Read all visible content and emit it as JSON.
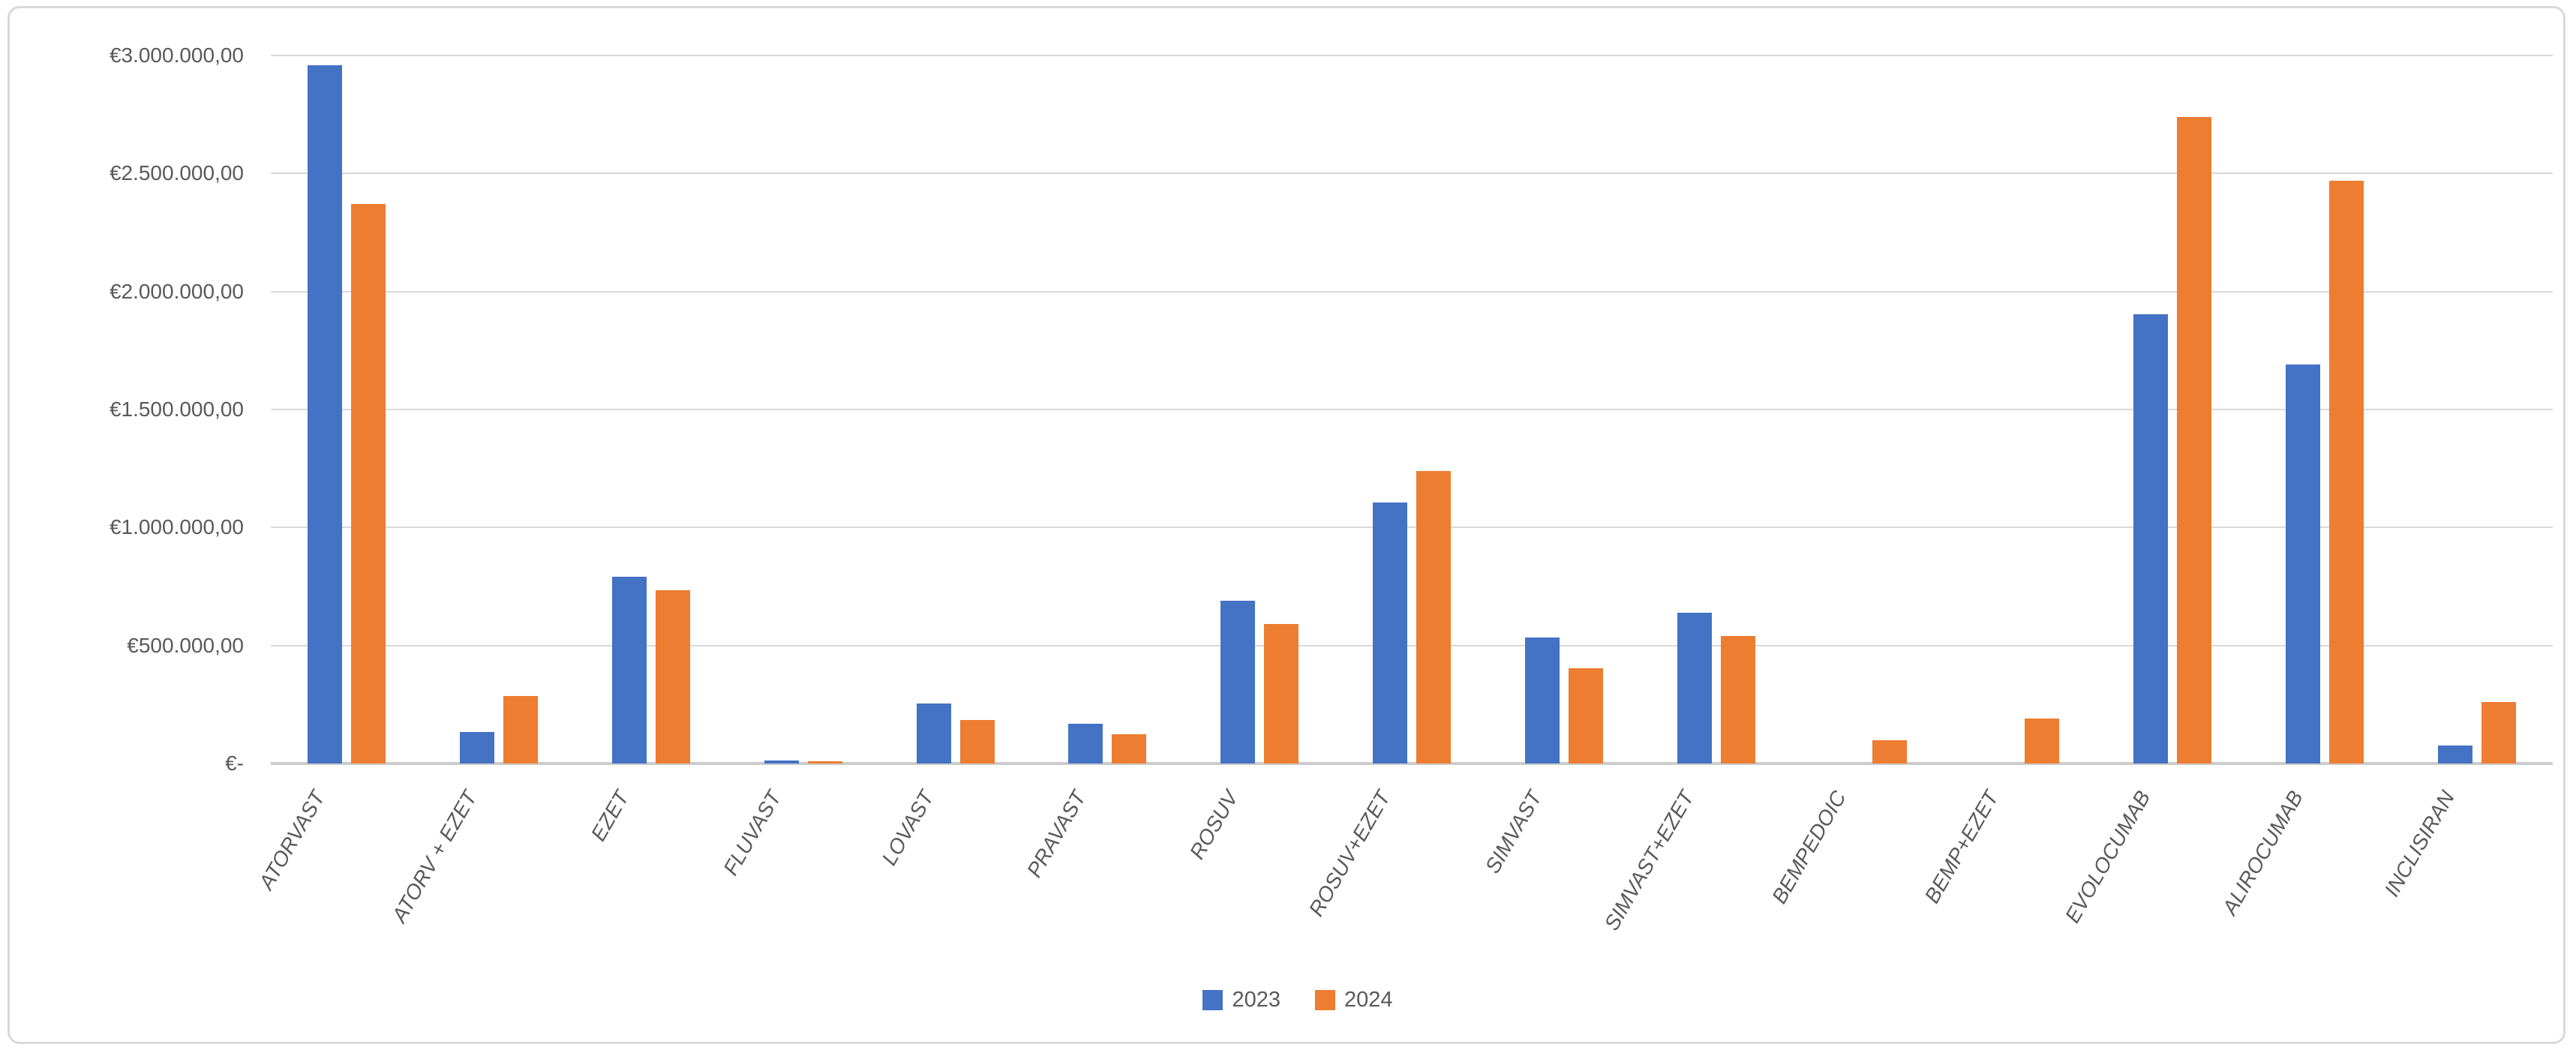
{
  "chart_data": {
    "type": "bar",
    "title": "",
    "xlabel": "",
    "ylabel": "",
    "categories": [
      "ATORVAST",
      "ATORV + EZET",
      "EZET",
      "FLUVAST",
      "LOVAST",
      "PRAVAST",
      "ROSUV",
      "ROSUV+EZET",
      "SIMVAST",
      "SIMVAST+EZET",
      "BEMPEDOIC",
      "BEMP+EZET",
      "EVOLOCUMAB",
      "ALIROCUMAB",
      "INCLISIRAN"
    ],
    "series": [
      {
        "name": "2023",
        "color": "#4472C4",
        "values": [
          2960000,
          135000,
          790000,
          12000,
          255000,
          170000,
          690000,
          1105000,
          535000,
          640000,
          0,
          0,
          1905000,
          1690000,
          75000
        ]
      },
      {
        "name": "2024",
        "color": "#ED7D31",
        "values": [
          2370000,
          285000,
          735000,
          10000,
          185000,
          125000,
          590000,
          1240000,
          405000,
          540000,
          100000,
          190000,
          2740000,
          2470000,
          260000
        ]
      }
    ],
    "y_axis": {
      "min": 0,
      "max": 3000000,
      "tick_step": 500000,
      "tick_labels_top_to_bottom": [
        "€3.000.000,00",
        "€2.500.000,00",
        "€2.000.000,00",
        "€1.500.000,00",
        "€1.000.000,00",
        "€500.000,00",
        "€-"
      ]
    },
    "grid": true,
    "legend_position": "bottom",
    "colors": {
      "gridline": "#D9D9D9",
      "axis_text": "#595959",
      "chart_border": "#D9D9D9",
      "background": "#FFFFFF"
    }
  }
}
